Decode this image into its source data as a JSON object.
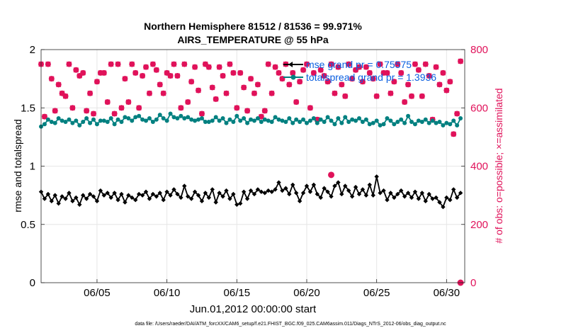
{
  "chart_data": {
    "type": "line",
    "title": "Northern Hemisphere 81512 / 81536 = 99.971%",
    "subtitle": "AIRS_TEMPERATURE @ 55 hPa",
    "xlabel": "Jun.01,2012 00:00:00 start",
    "ylabel_left": "rmse and totalspread",
    "ylabel_right": "# of obs: o=possible; ×=assimilated",
    "footer": "data file: /Users/raeder/DAI/ATM_forcXX/CAM6_setup/f.e21.FHIST_BGC.f09_025.CAM6assim.011/Diags_NTrS_2012-06/obs_diag_output.nc",
    "x_tick_labels": [
      "06/05",
      "06/10",
      "06/15",
      "06/20",
      "06/25",
      "06/30"
    ],
    "x_tick_days": [
      5,
      10,
      15,
      20,
      25,
      30
    ],
    "xlim_days": [
      1,
      31.3
    ],
    "ylim_left": [
      0,
      2
    ],
    "y_left_ticks": [
      0,
      0.5,
      1,
      1.5,
      2
    ],
    "y_left_tick_labels": [
      "0",
      "0.5",
      "1",
      "1.5",
      "2"
    ],
    "ylim_right": [
      0,
      800
    ],
    "y_right_ticks": [
      0,
      200,
      400,
      600,
      800
    ],
    "y_right_tick_labels": [
      "0",
      "200",
      "400",
      "600",
      "800"
    ],
    "grid": true,
    "legend_position": "top-right",
    "colors": {
      "rmse": "#000000",
      "spread": "#008080",
      "obs": "#e0125a",
      "legend_text": "#0a5fe0"
    },
    "x_days": [
      1.0,
      1.25,
      1.5,
      1.75,
      2.0,
      2.25,
      2.5,
      2.75,
      3.0,
      3.25,
      3.5,
      3.75,
      4.0,
      4.25,
      4.5,
      4.75,
      5.0,
      5.25,
      5.5,
      5.75,
      6.0,
      6.25,
      6.5,
      6.75,
      7.0,
      7.25,
      7.5,
      7.75,
      8.0,
      8.25,
      8.5,
      8.75,
      9.0,
      9.25,
      9.5,
      9.75,
      10.0,
      10.25,
      10.5,
      10.75,
      11.0,
      11.25,
      11.5,
      11.75,
      12.0,
      12.25,
      12.5,
      12.75,
      13.0,
      13.25,
      13.5,
      13.75,
      14.0,
      14.25,
      14.5,
      14.75,
      15.0,
      15.25,
      15.5,
      15.75,
      16.0,
      16.25,
      16.5,
      16.75,
      17.0,
      17.25,
      17.5,
      17.75,
      18.0,
      18.25,
      18.5,
      18.75,
      19.0,
      19.25,
      19.5,
      19.75,
      20.0,
      20.25,
      20.5,
      20.75,
      21.0,
      21.25,
      21.5,
      21.75,
      22.0,
      22.25,
      22.5,
      22.75,
      23.0,
      23.25,
      23.5,
      23.75,
      24.0,
      24.25,
      24.5,
      24.75,
      25.0,
      25.25,
      25.5,
      25.75,
      26.0,
      26.25,
      26.5,
      26.75,
      27.0,
      27.25,
      27.5,
      27.75,
      28.0,
      28.25,
      28.5,
      28.75,
      29.0,
      29.25,
      29.5,
      29.75,
      30.0,
      30.25,
      30.5,
      30.75,
      31.0
    ],
    "series": [
      {
        "name": "mse grand pr = 0.75575",
        "legend_label": "mse grand pr = 0.75575",
        "values": [
          0.78,
          0.72,
          0.76,
          0.7,
          0.75,
          0.68,
          0.74,
          0.72,
          0.77,
          0.7,
          0.73,
          0.67,
          0.75,
          0.72,
          0.76,
          0.74,
          0.7,
          0.79,
          0.75,
          0.77,
          0.73,
          0.77,
          0.71,
          0.76,
          0.69,
          0.75,
          0.73,
          0.71,
          0.76,
          0.75,
          0.78,
          0.72,
          0.76,
          0.74,
          0.77,
          0.71,
          0.78,
          0.75,
          0.8,
          0.76,
          0.73,
          0.83,
          0.74,
          0.72,
          0.78,
          0.75,
          0.7,
          0.77,
          0.73,
          0.8,
          0.69,
          0.77,
          0.74,
          0.79,
          0.72,
          0.76,
          0.67,
          0.68,
          0.78,
          0.72,
          0.79,
          0.76,
          0.8,
          0.78,
          0.77,
          0.79,
          0.78,
          0.8,
          0.86,
          0.79,
          0.81,
          0.76,
          0.84,
          0.77,
          0.7,
          0.77,
          0.83,
          0.78,
          0.84,
          0.76,
          0.73,
          0.81,
          0.78,
          0.74,
          0.83,
          0.86,
          0.76,
          0.83,
          0.79,
          0.74,
          0.82,
          0.76,
          0.8,
          0.75,
          0.84,
          0.75,
          0.91,
          0.77,
          0.79,
          0.71,
          0.77,
          0.73,
          0.76,
          0.79,
          0.74,
          0.77,
          0.73,
          0.78,
          0.72,
          0.77,
          0.7,
          0.76,
          0.72,
          0.73,
          0.69,
          0.65,
          0.73,
          0.71,
          0.8,
          0.73,
          0.77
        ]
      },
      {
        "name": "totalspread grand pr = 1.3936",
        "legend_label": "totalspread grand pr = 1.3936",
        "values": [
          1.34,
          1.36,
          1.4,
          1.38,
          1.37,
          1.41,
          1.39,
          1.38,
          1.4,
          1.37,
          1.39,
          1.35,
          1.38,
          1.41,
          1.37,
          1.4,
          1.36,
          1.39,
          1.39,
          1.38,
          1.41,
          1.36,
          1.4,
          1.38,
          1.42,
          1.41,
          1.39,
          1.42,
          1.43,
          1.4,
          1.39,
          1.41,
          1.38,
          1.4,
          1.44,
          1.41,
          1.39,
          1.45,
          1.42,
          1.41,
          1.43,
          1.41,
          1.42,
          1.4,
          1.39,
          1.4,
          1.41,
          1.38,
          1.38,
          1.39,
          1.42,
          1.39,
          1.41,
          1.37,
          1.4,
          1.38,
          1.43,
          1.39,
          1.41,
          1.37,
          1.4,
          1.39,
          1.41,
          1.38,
          1.4,
          1.39,
          1.38,
          1.42,
          1.4,
          1.39,
          1.38,
          1.41,
          1.37,
          1.4,
          1.38,
          1.4,
          1.37,
          1.39,
          1.41,
          1.37,
          1.4,
          1.38,
          1.42,
          1.39,
          1.36,
          1.41,
          1.37,
          1.42,
          1.38,
          1.4,
          1.39,
          1.41,
          1.38,
          1.4,
          1.36,
          1.37,
          1.39,
          1.35,
          1.36,
          1.41,
          1.39,
          1.36,
          1.38,
          1.4,
          1.37,
          1.43,
          1.38,
          1.36,
          1.39,
          1.38,
          1.4,
          1.37,
          1.39,
          1.37,
          1.38,
          1.35,
          1.37,
          1.36,
          1.39,
          1.35,
          1.41
        ]
      },
      {
        "name": "# of obs possible",
        "axis": "right",
        "values": [
          750,
          570,
          750,
          700,
          590,
          680,
          650,
          640,
          750,
          600,
          730,
          710,
          720,
          590,
          650,
          580,
          690,
          720,
          720,
          620,
          750,
          580,
          750,
          600,
          700,
          620,
          750,
          720,
          600,
          710,
          740,
          650,
          750,
          730,
          680,
          650,
          720,
          710,
          750,
          710,
          600,
          750,
          620,
          690,
          740,
          660,
          580,
          750,
          740,
          670,
          630,
          740,
          710,
          650,
          750,
          720,
          600,
          720,
          670,
          590,
          700,
          650,
          680,
          570,
          590,
          750,
          650,
          740,
          720,
          700,
          750,
          680,
          720,
          620,
          690,
          730,
          750,
          600,
          720,
          560,
          730,
          710,
          690,
          750,
          650,
          740,
          680,
          640,
          750,
          700,
          730,
          740,
          690,
          740,
          720,
          700,
          640,
          750,
          720,
          720,
          650,
          690,
          750,
          720,
          620,
          680,
          640,
          750,
          730,
          640,
          750,
          710,
          560,
          740,
          680,
          720,
          660,
          690,
          510,
          580,
          760
        ]
      },
      {
        "name": "# of obs assimilated",
        "axis": "right",
        "values": [
          750,
          570,
          750,
          700,
          590,
          680,
          650,
          640,
          750,
          600,
          730,
          710,
          720,
          590,
          650,
          580,
          690,
          720,
          720,
          620,
          750,
          580,
          750,
          600,
          700,
          620,
          750,
          720,
          600,
          710,
          740,
          650,
          750,
          730,
          680,
          650,
          720,
          710,
          750,
          710,
          600,
          750,
          620,
          690,
          740,
          660,
          580,
          750,
          740,
          670,
          630,
          740,
          710,
          650,
          750,
          720,
          600,
          720,
          670,
          590,
          700,
          650,
          680,
          570,
          590,
          750,
          650,
          740,
          720,
          700,
          750,
          680,
          720,
          620,
          690,
          730,
          750,
          600,
          720,
          560,
          730,
          710,
          690,
          750,
          650,
          740,
          680,
          640,
          750,
          700,
          730,
          740,
          690,
          740,
          720,
          700,
          640,
          750,
          720,
          720,
          650,
          690,
          750,
          720,
          620,
          680,
          640,
          750,
          730,
          640,
          750,
          710,
          560,
          740,
          680,
          720,
          660,
          690,
          510,
          580,
          760
        ]
      }
    ],
    "annotations": [
      {
        "name": "highlighted obs marker",
        "x_day": 21.75,
        "value": 370,
        "axis": "right"
      },
      {
        "name": "zero obs marker",
        "x_day": 31.0,
        "value": 0,
        "axis": "right"
      }
    ]
  }
}
